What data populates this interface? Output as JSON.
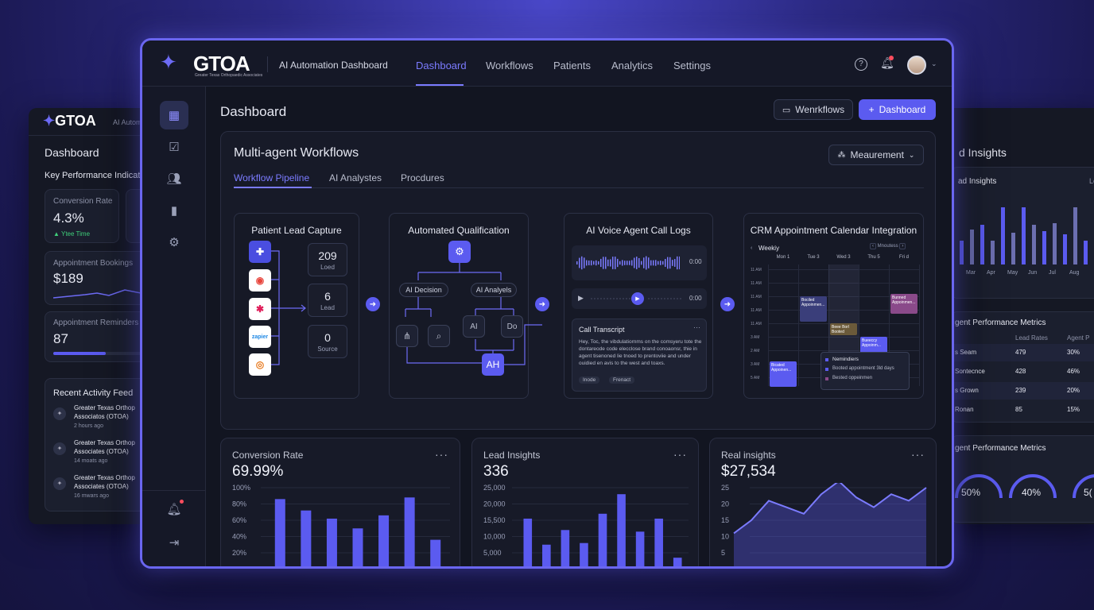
{
  "brand": {
    "logo_text": "GTOA",
    "logo_subtitle": "Greater Texas Orthopaedic Associates",
    "app_title": "AI Automation Dashboard"
  },
  "nav": {
    "items": [
      "Dashboard",
      "Workflows",
      "Patients",
      "Analytics",
      "Settings"
    ],
    "active": "Dashboard"
  },
  "page": {
    "title": "Dashboard",
    "btn_workflows": "Wenrkflows",
    "btn_dashboard": "Dashboard"
  },
  "workflows": {
    "title": "Multi-agent Workflows",
    "measure_label": "Meaurement",
    "tabs": [
      "Workflow Pipeline",
      "AI Analystes",
      "Procdures"
    ],
    "lead_capture": {
      "title": "Patient Lead Capture",
      "stats": [
        {
          "value": "209",
          "label": "Loed"
        },
        {
          "value": "6",
          "label": "Lead"
        },
        {
          "value": "0",
          "label": "Source"
        }
      ],
      "apps": [
        "slack-icon-1",
        "chrome-icon",
        "slack-icon",
        "zapier-icon",
        "orange-icon"
      ]
    },
    "qualification": {
      "title": "Automated Qualification",
      "decision": "AI Decision",
      "analysis": "AI Analyels",
      "ai": "AI",
      "do": "Do",
      "output": "AH"
    },
    "voice": {
      "title": "AI Voice Agent Call Logs",
      "time1": "0:00",
      "time2": "0:00",
      "transcript_title": "Call Transcript",
      "transcript_text": "Hey, Toc, the vibdulatiornms on the comsyeru tote the dontareode code elecclose brand conoaonsr, thie in agent tisenoned lie tnoed to prentoviie and under ouidied en avis to the west and toaxs.",
      "tags": [
        "Inode",
        "Frenact"
      ]
    },
    "crm": {
      "title": "CRM Appointment Calendar Integration",
      "view": "Weekiy",
      "mode": "Mnoutess",
      "days": [
        "Mon 1",
        "Tue 3",
        "Wed 3",
        "Thu 5",
        "Fri d"
      ],
      "times": [
        "11 AM",
        "11 AM",
        "11 AM",
        "11 AM",
        "11 AM",
        "3 AM",
        "2 AM",
        "3 AM",
        "5 AM"
      ],
      "events": [
        "Bociled Appoinmen...",
        "Beee Borl Booted",
        "Bueeccy Appoinm...",
        "Bunned Appoinmen...",
        "Bicated Appoinen..."
      ],
      "reminders_title": "Nemindiers",
      "reminders": [
        "Booted appointment 3ld days",
        "Bested oppeinmen"
      ]
    }
  },
  "metrics": [
    {
      "title": "Conversion Rate",
      "value": "69.99%",
      "ticks": [
        "100%",
        "80%",
        "60%",
        "40%",
        "20%"
      ]
    },
    {
      "title": "Lead Insights",
      "value": "336",
      "ticks": [
        "25,000",
        "20,000",
        "15,500",
        "10,000",
        "5,000"
      ]
    },
    {
      "title": "Real insights",
      "value": "$27,534",
      "ticks": [
        "25",
        "20",
        "15",
        "10",
        "5"
      ]
    }
  ],
  "chart_data": [
    {
      "type": "bar",
      "title": "Conversion Rate",
      "ylim": [
        0,
        100
      ],
      "values": [
        86,
        72,
        62,
        50,
        66,
        88,
        36
      ]
    },
    {
      "type": "bar",
      "title": "Lead Insights",
      "ylim": [
        0,
        25000
      ],
      "values": [
        15500,
        7500,
        12000,
        8000,
        17000,
        23000,
        11500,
        15500,
        3500
      ]
    },
    {
      "type": "area",
      "title": "Real insights",
      "ylim": [
        0,
        30
      ],
      "values": [
        11,
        15,
        21,
        19,
        17,
        23,
        27,
        22,
        19,
        23,
        21,
        25
      ]
    }
  ],
  "left_panel": {
    "logo_text": "GTOA",
    "app_title": "AI Autom",
    "title": "Dashboard",
    "kpi_title": "Key Performance Indicat",
    "conversion": {
      "label": "Conversion Rate",
      "value": "4.3%",
      "sub": "Ytee Time"
    },
    "bookings": {
      "label": "Appointment Bookings",
      "value": "$189"
    },
    "reminders": {
      "label": "Appointment Reminders",
      "value": "87",
      "progress": 0.55
    },
    "activity_title": "Recent Activity Feed",
    "activity": [
      {
        "l1": "Greater Texas Orthop",
        "l2": "Associatos (OTOA)",
        "time": "2 hours ago"
      },
      {
        "l1": "Greater Texas Orthop",
        "l2": "Associates (OTOA)",
        "time": "14 moats ago"
      },
      {
        "l1": "Greater Texas Orthop",
        "l2": "Associates (OTOA)",
        "time": "16 mwars ago"
      }
    ]
  },
  "right_panel": {
    "title": "d Insights",
    "sub": "ad Insights",
    "sub_right": "Le",
    "months": [
      "Mar",
      "Apr",
      "May",
      "Jun",
      "Jul",
      "Aug"
    ],
    "agent_title": "gent Performance Metrics",
    "table_headers": [
      "Lead Rates",
      "Agent P"
    ],
    "rows": [
      {
        "name": "s Seam",
        "lead": "479",
        "pct": "30%"
      },
      {
        "name": "Sontecnce",
        "lead": "428",
        "pct": "46%"
      },
      {
        "name": "s Grown",
        "lead": "239",
        "pct": "20%"
      },
      {
        "name": "Ronan",
        "lead": "85",
        "pct": "15%"
      }
    ],
    "agent_title2": "gent Performance Metrics",
    "gauges": [
      "50%",
      "40%",
      "5("
    ]
  },
  "colors": {
    "accent": "#5b5bf0",
    "bar": "#5b5bf0"
  }
}
